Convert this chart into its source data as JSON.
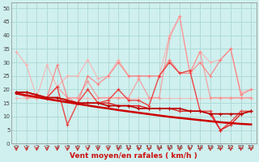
{
  "title": "",
  "xlabel": "Vent moyen/en rafales ( km/h )",
  "background_color": "#cff0ee",
  "grid_color": "#aad8d4",
  "x": [
    0,
    1,
    2,
    3,
    4,
    5,
    6,
    7,
    8,
    9,
    10,
    11,
    12,
    13,
    14,
    15,
    16,
    17,
    18,
    19,
    20,
    21,
    22,
    23
  ],
  "series": [
    {
      "name": "s_light1",
      "color": "#ffaaaa",
      "alpha": 0.85,
      "linewidth": 0.8,
      "marker": "+",
      "markersize": 3,
      "y": [
        34,
        29,
        17,
        29,
        21,
        25,
        25,
        31,
        24,
        25,
        31,
        25,
        25,
        25,
        25,
        40,
        47,
        26,
        34,
        30,
        31,
        35,
        19,
        20
      ]
    },
    {
      "name": "s_light2",
      "color": "#ffaaaa",
      "alpha": 0.7,
      "linewidth": 0.8,
      "marker": "+",
      "markersize": 3,
      "y": [
        17,
        17,
        17,
        17,
        17,
        17,
        17,
        17,
        17,
        17,
        17,
        17,
        17,
        17,
        17,
        17,
        17,
        17,
        17,
        17,
        17,
        17,
        17,
        17
      ]
    },
    {
      "name": "s_med1",
      "color": "#ff8888",
      "alpha": 0.75,
      "linewidth": 0.9,
      "marker": "+",
      "markersize": 3,
      "y": [
        19,
        17,
        17,
        17,
        21,
        17,
        17,
        23,
        17,
        17,
        17,
        17,
        24,
        17,
        17,
        39,
        47,
        26,
        34,
        17,
        17,
        17,
        17,
        17
      ]
    },
    {
      "name": "s_med2",
      "color": "#ff7777",
      "alpha": 0.8,
      "linewidth": 0.9,
      "marker": "+",
      "markersize": 3,
      "y": [
        19,
        18,
        18,
        17,
        29,
        17,
        15,
        25,
        22,
        25,
        30,
        25,
        25,
        25,
        25,
        31,
        26,
        26,
        30,
        25,
        31,
        35,
        18,
        20
      ]
    },
    {
      "name": "s_dark1",
      "color": "#ee3333",
      "alpha": 0.9,
      "linewidth": 1.0,
      "marker": "+",
      "markersize": 3,
      "y": [
        19,
        19,
        18,
        17,
        21,
        7,
        15,
        20,
        15,
        16,
        20,
        16,
        16,
        14,
        25,
        30,
        26,
        27,
        12,
        12,
        5,
        8,
        12,
        12
      ]
    },
    {
      "name": "s_dark2",
      "color": "#dd2222",
      "alpha": 1.0,
      "linewidth": 1.0,
      "marker": "+",
      "markersize": 3,
      "y": [
        19,
        19,
        18,
        17,
        17,
        16,
        15,
        15,
        15,
        15,
        14,
        14,
        14,
        13,
        13,
        13,
        12,
        12,
        12,
        11,
        5,
        7,
        11,
        12
      ]
    },
    {
      "name": "s_trend",
      "color": "#cc0000",
      "alpha": 1.0,
      "linewidth": 1.8,
      "marker": null,
      "markersize": 0,
      "y": [
        18.5,
        17.8,
        17.2,
        16.5,
        15.9,
        15.3,
        14.7,
        14.1,
        13.5,
        13.0,
        12.4,
        11.9,
        11.4,
        10.9,
        10.4,
        9.9,
        9.5,
        9.1,
        8.7,
        8.3,
        7.9,
        7.6,
        7.3,
        7.1
      ]
    },
    {
      "name": "s_darkest",
      "color": "#bb0000",
      "alpha": 1.0,
      "linewidth": 1.2,
      "marker": "+",
      "markersize": 3,
      "y": [
        19,
        19,
        18,
        17,
        17,
        16,
        15,
        15,
        15,
        14,
        14,
        14,
        13,
        13,
        13,
        13,
        13,
        12,
        12,
        11,
        11,
        11,
        11,
        12
      ]
    }
  ],
  "ylim": [
    0,
    52
  ],
  "yticks": [
    0,
    5,
    10,
    15,
    20,
    25,
    30,
    35,
    40,
    45,
    50
  ],
  "xlim": [
    -0.5,
    23.5
  ],
  "xticks": [
    0,
    1,
    2,
    3,
    4,
    5,
    6,
    7,
    8,
    9,
    10,
    11,
    12,
    13,
    14,
    15,
    16,
    17,
    18,
    19,
    20,
    21,
    22,
    23
  ],
  "arrow_color": "#cc3333",
  "tick_fontsize": 5.0,
  "xlabel_fontsize": 6.5
}
